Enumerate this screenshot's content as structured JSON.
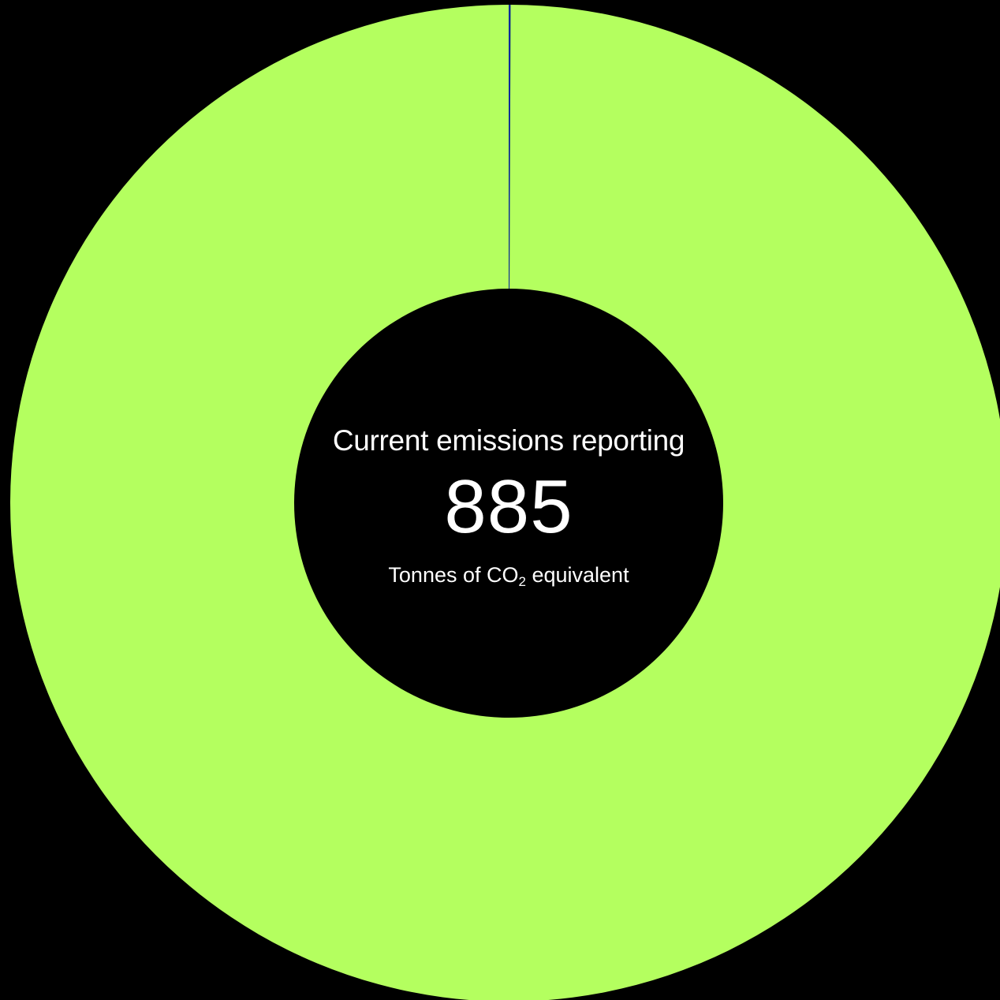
{
  "chart_data": {
    "type": "pie",
    "style": "donut",
    "center_label": "Current emissions reporting",
    "center_value": "885",
    "unit": {
      "prefix": "Tonnes of CO",
      "subscript": "2",
      "suffix": " equivalent"
    },
    "slices": [
      {
        "value": 0.55,
        "color": "#0a2a9c"
      },
      {
        "value": 884.45,
        "color": "#b4ff5f"
      }
    ],
    "total": 885
  }
}
